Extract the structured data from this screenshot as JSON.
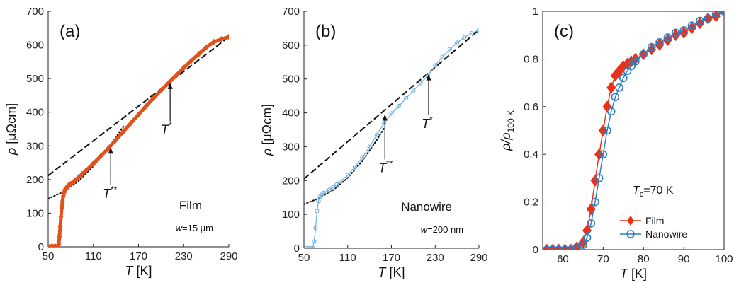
{
  "colors": {
    "film": "#e0521c",
    "film_c": "#e8301a",
    "nanowire": "#2f7fc1",
    "nanowire_light": "#6aaee0",
    "dashed": "#111111",
    "dotted": "#111111",
    "axis": "#222222"
  },
  "chart_data": [
    {
      "panel": "a",
      "type": "scatter",
      "panel_label": "(a)",
      "xlabel": {
        "italic": "T",
        "rest": " [K]"
      },
      "ylabel": {
        "italic": "ρ",
        "rest": " [μΩcm]"
      },
      "xlim": [
        50,
        290
      ],
      "ylim": [
        0,
        700
      ],
      "xticks": [
        50,
        110,
        170,
        230,
        290
      ],
      "yticks": [
        0,
        100,
        200,
        300,
        400,
        500,
        600,
        700
      ],
      "sample_label": "Film",
      "width_label": {
        "italic": "w",
        "rest": "=15 μm"
      },
      "annotations": [
        {
          "main": "T",
          "sup": "*",
          "x": 212,
          "y": 490,
          "text_x": 207,
          "text_y": 335
        },
        {
          "main": "T",
          "sup": "**",
          "x": 133,
          "y": 298,
          "text_x": 132,
          "text_y": 145
        }
      ],
      "dashed_line": {
        "x": [
          50,
          290
        ],
        "y": [
          212,
          624
        ]
      },
      "dotted_curve": {
        "x": [
          50,
          70,
          90,
          110,
          130,
          150
        ],
        "y": [
          143,
          163,
          195,
          240,
          293,
          358
        ]
      },
      "series": [
        {
          "marker": "diamond",
          "x": [
            52,
            54,
            56,
            58,
            60,
            62,
            63,
            64,
            65,
            66,
            67,
            68,
            69,
            70,
            71,
            72,
            73,
            74,
            75,
            76,
            77,
            78,
            80,
            85,
            90,
            95,
            100,
            110,
            120,
            130,
            140,
            150,
            160,
            170,
            180,
            190,
            200,
            210,
            220,
            230,
            240,
            250,
            260,
            270,
            280,
            290
          ],
          "y": [
            0,
            0,
            0,
            0,
            0,
            0,
            2,
            8,
            30,
            60,
            90,
            115,
            135,
            150,
            160,
            167,
            172,
            175,
            178,
            180,
            182,
            184,
            187,
            196,
            206,
            216,
            226,
            248,
            270,
            293,
            318,
            343,
            368,
            393,
            418,
            442,
            465,
            487,
            510,
            532,
            553,
            573,
            593,
            609,
            617,
            624
          ]
        }
      ]
    },
    {
      "panel": "b",
      "type": "scatter",
      "panel_label": "(b)",
      "xlabel": {
        "italic": "T",
        "rest": " [K]"
      },
      "ylabel": {
        "italic": "ρ",
        "rest": " [μΩcm]"
      },
      "xlim": [
        50,
        290
      ],
      "ylim": [
        0,
        700
      ],
      "xticks": [
        50,
        110,
        170,
        230,
        290
      ],
      "yticks": [
        0,
        100,
        200,
        300,
        400,
        500,
        600,
        700
      ],
      "sample_label": "Nanowire",
      "width_label": {
        "italic": "w",
        "rest": "=200 nm"
      },
      "annotations": [
        {
          "main": "T",
          "sup": "*",
          "x": 221,
          "y": 517,
          "text_x": 219,
          "text_y": 355
        },
        {
          "main": "T",
          "sup": "**",
          "x": 161,
          "y": 398,
          "text_x": 162,
          "text_y": 225
        }
      ],
      "dashed_line": {
        "x": [
          50,
          290
        ],
        "y": [
          205,
          645
        ]
      },
      "dotted_curve": {
        "x": [
          50,
          70,
          90,
          110,
          130,
          150,
          160
        ],
        "y": [
          130,
          147,
          172,
          208,
          258,
          320,
          355
        ]
      },
      "series": [
        {
          "marker": "circle",
          "x": [
            53,
            56,
            59,
            62,
            64,
            66,
            68,
            70,
            72,
            74,
            77,
            80,
            85,
            90,
            95,
            100,
            110,
            120,
            130,
            140,
            150,
            160,
            170,
            180,
            190,
            200,
            210,
            220,
            230,
            240,
            250,
            260,
            270,
            280,
            290
          ],
          "y": [
            0,
            0,
            0,
            0,
            20,
            60,
            110,
            140,
            152,
            158,
            163,
            167,
            173,
            180,
            188,
            197,
            216,
            240,
            268,
            300,
            335,
            370,
            398,
            420,
            443,
            465,
            488,
            510,
            540,
            565,
            588,
            607,
            623,
            635,
            645
          ]
        }
      ]
    },
    {
      "panel": "c",
      "type": "line",
      "panel_label": "(c)",
      "xlabel": {
        "italic": "T",
        "rest": " [K]"
      },
      "ylabel": {
        "main": "ρ/ρ",
        "sub": "100 K"
      },
      "xlim": [
        55,
        100
      ],
      "ylim": [
        0,
        1
      ],
      "xticks": [
        60,
        70,
        80,
        90,
        100
      ],
      "yticks": [
        0,
        0.2,
        0.4,
        0.6,
        0.8,
        1
      ],
      "tc_label": {
        "main": "T",
        "sub": "c",
        "rest": "=70 K"
      },
      "legend_position": "bottom-right",
      "series": [
        {
          "name": "Film",
          "marker": "diamond",
          "x": [
            56,
            57.5,
            59,
            60.5,
            62,
            63.5,
            65,
            66,
            67,
            68,
            69,
            70,
            71,
            72,
            73,
            74,
            75,
            76,
            77,
            78,
            80,
            82,
            84,
            86,
            88,
            90,
            92,
            94,
            96,
            98,
            100
          ],
          "y": [
            0,
            0,
            0,
            0,
            0,
            0.01,
            0.03,
            0.08,
            0.17,
            0.29,
            0.4,
            0.5,
            0.6,
            0.68,
            0.73,
            0.75,
            0.77,
            0.78,
            0.79,
            0.8,
            0.82,
            0.84,
            0.86,
            0.88,
            0.9,
            0.91,
            0.93,
            0.95,
            0.97,
            0.98,
            1.0
          ]
        },
        {
          "name": "Nanowire",
          "marker": "circle",
          "x": [
            56,
            57.5,
            59,
            60.5,
            62,
            63.5,
            65,
            66,
            67,
            68,
            69,
            70,
            71,
            72,
            73,
            74,
            75,
            76,
            77,
            78,
            80,
            82,
            84,
            86,
            88,
            90,
            92,
            94,
            96,
            98,
            100
          ],
          "y": [
            0,
            0,
            0,
            0,
            0,
            0.01,
            0.02,
            0.05,
            0.11,
            0.2,
            0.3,
            0.4,
            0.5,
            0.58,
            0.64,
            0.68,
            0.72,
            0.75,
            0.77,
            0.79,
            0.82,
            0.85,
            0.87,
            0.89,
            0.91,
            0.92,
            0.94,
            0.96,
            0.97,
            0.99,
            1.0
          ]
        }
      ]
    }
  ]
}
